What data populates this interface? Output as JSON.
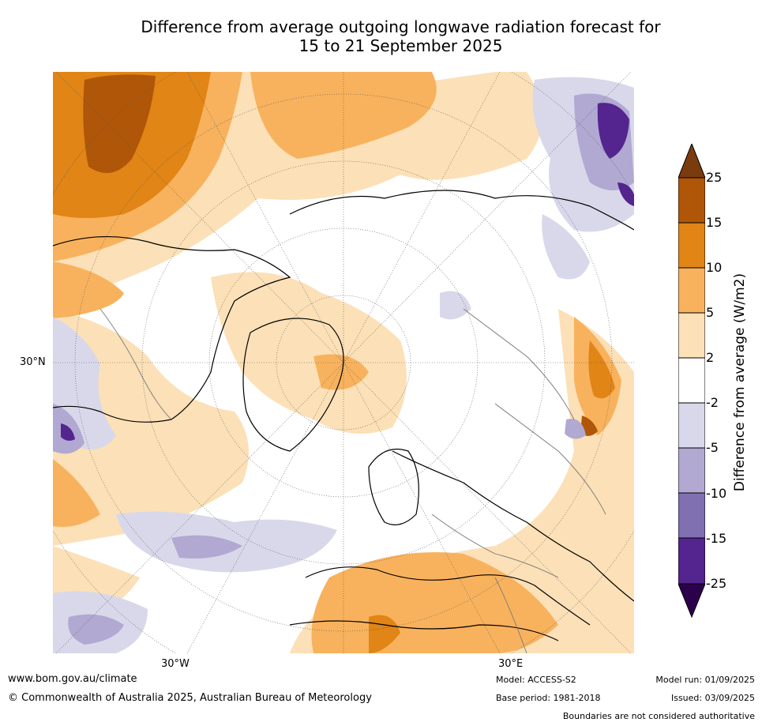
{
  "title": {
    "line1": "Difference from average outgoing longwave radiation forecast for",
    "line2": "15 to 21 September 2025"
  },
  "map": {
    "lat_labels": [
      "30°N"
    ],
    "lon_labels": [
      "30°W",
      "30°E"
    ]
  },
  "colorbar": {
    "label": "Difference from average (W/m2)",
    "ticks": [
      "25",
      "15",
      "10",
      "5",
      "2",
      "-2",
      "-5",
      "-10",
      "-15",
      "-25"
    ],
    "colors": [
      "#7a3b0d",
      "#b05609",
      "#e08516",
      "#f8b25d",
      "#fce0b7",
      "#ffffff",
      "#d8d8ea",
      "#b1a9d2",
      "#8070b2",
      "#54248f",
      "#2d004b"
    ]
  },
  "footer": {
    "website": "www.bom.gov.au/climate",
    "copyright": "© Commonwealth of Australia 2025, Australian Bureau of Meteorology",
    "model": "Model: ACCESS-S2",
    "base_period": "Base period: 1981-2018",
    "model_run": "Model run: 01/09/2025",
    "issued": "Issued: 03/09/2025",
    "boundaries_note": "Boundaries are not considered authoritative"
  }
}
